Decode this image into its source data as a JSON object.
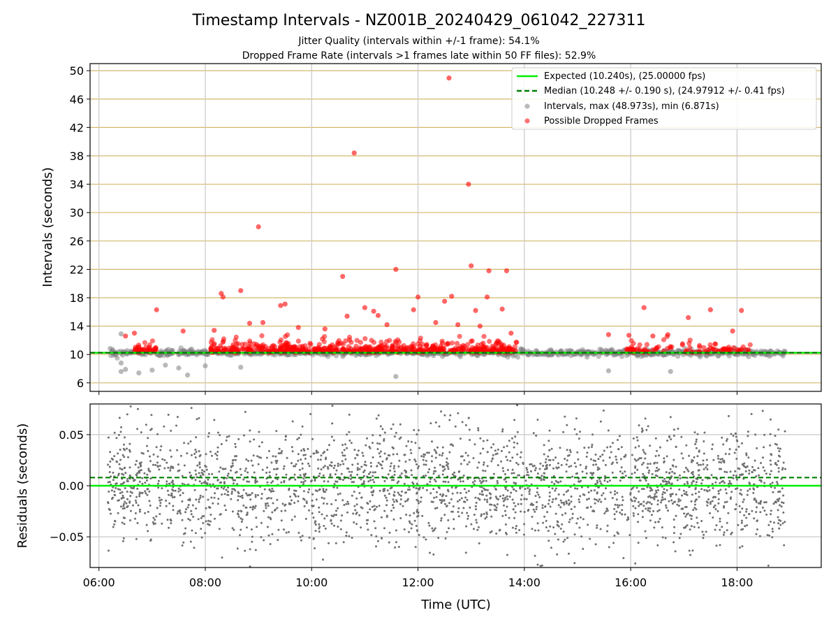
{
  "figure": {
    "title": "Timestamp Intervals - NZ001B_20240429_061042_227311",
    "subtitle_1": "Jitter Quality (intervals within +/-1 frame): 54.1%",
    "subtitle_2": "Dropped Frame Rate (intervals >1 frames late within 50 FF files): 52.9%"
  },
  "colors": {
    "expected": "#00ee00",
    "median": "#007f00",
    "intervals": "#808080",
    "dropped": "#ff0000",
    "hgrid": "#d4b86a",
    "vgrid": "#c8c8c8"
  },
  "chart_data": [
    {
      "type": "scatter",
      "panel": "top",
      "ylabel": "Intervals (seconds)",
      "xlim": [
        "05:50",
        "19:35"
      ],
      "ylim": [
        4.8,
        51
      ],
      "yticks": [
        "6",
        "10",
        "14",
        "18",
        "22",
        "26",
        "30",
        "34",
        "38",
        "42",
        "46",
        "50"
      ],
      "xticks": [
        "06:00",
        "08:00",
        "10:00",
        "12:00",
        "14:00",
        "16:00",
        "18:00"
      ],
      "grid": "on",
      "legend_position": "top-right",
      "lines": [
        {
          "name": "Expected (10.240s), (25.00000 fps)",
          "style": "solid",
          "y": 10.24
        },
        {
          "name": "Median (10.248 +/- 0.190 s), (24.97912 +/- 0.41 fps)",
          "style": "dashed",
          "y": 10.248
        }
      ],
      "series": [
        {
          "name": "Intervals, max (48.973s), min (6.871s)",
          "x_range": [
            "06:12",
            "18:55"
          ],
          "y_band": [
            9.8,
            10.8
          ],
          "outliers": [
            {
              "x": "06:25",
              "y": 12.9
            },
            {
              "x": "06:25",
              "y": 7.6
            },
            {
              "x": "06:25",
              "y": 8.8
            },
            {
              "x": "06:45",
              "y": 7.4
            },
            {
              "x": "07:00",
              "y": 7.8
            },
            {
              "x": "07:30",
              "y": 8.1
            },
            {
              "x": "07:40",
              "y": 7.1
            },
            {
              "x": "08:00",
              "y": 8.4
            },
            {
              "x": "08:40",
              "y": 8.2
            },
            {
              "x": "11:35",
              "y": 6.9
            },
            {
              "x": "15:35",
              "y": 7.7
            },
            {
              "x": "16:45",
              "y": 7.6
            },
            {
              "x": "06:30",
              "y": 7.9
            },
            {
              "x": "07:15",
              "y": 8.5
            }
          ]
        },
        {
          "name": "Possible Dropped Frames",
          "points": [
            {
              "x": "12:35",
              "y": 48.97
            },
            {
              "x": "10:48",
              "y": 38.4
            },
            {
              "x": "12:57",
              "y": 34.0
            },
            {
              "x": "09:00",
              "y": 28.0
            },
            {
              "x": "13:00",
              "y": 22.5
            },
            {
              "x": "11:35",
              "y": 22.0
            },
            {
              "x": "13:20",
              "y": 21.8
            },
            {
              "x": "13:40",
              "y": 21.8
            },
            {
              "x": "10:35",
              "y": 21.0
            },
            {
              "x": "08:18",
              "y": 18.6
            },
            {
              "x": "08:20",
              "y": 18.1
            },
            {
              "x": "08:40",
              "y": 19.0
            },
            {
              "x": "12:00",
              "y": 18.1
            },
            {
              "x": "12:38",
              "y": 18.2
            },
            {
              "x": "13:18",
              "y": 18.1
            },
            {
              "x": "09:25",
              "y": 16.9
            },
            {
              "x": "09:30",
              "y": 17.1
            },
            {
              "x": "07:05",
              "y": 16.3
            },
            {
              "x": "11:00",
              "y": 16.6
            },
            {
              "x": "11:10",
              "y": 16.1
            },
            {
              "x": "11:55",
              "y": 16.3
            },
            {
              "x": "12:30",
              "y": 17.5
            },
            {
              "x": "13:05",
              "y": 16.2
            },
            {
              "x": "13:35",
              "y": 16.4
            },
            {
              "x": "10:40",
              "y": 15.4
            },
            {
              "x": "11:15",
              "y": 15.5
            },
            {
              "x": "16:15",
              "y": 16.6
            },
            {
              "x": "17:05",
              "y": 15.2
            },
            {
              "x": "17:30",
              "y": 16.3
            },
            {
              "x": "18:05",
              "y": 16.2
            },
            {
              "x": "07:35",
              "y": 13.3
            },
            {
              "x": "06:40",
              "y": 13.0
            },
            {
              "x": "06:30",
              "y": 12.6
            },
            {
              "x": "15:35",
              "y": 12.8
            },
            {
              "x": "15:58",
              "y": 12.7
            },
            {
              "x": "16:25",
              "y": 12.6
            },
            {
              "x": "16:42",
              "y": 12.8
            },
            {
              "x": "17:55",
              "y": 13.3
            },
            {
              "x": "09:05",
              "y": 14.5
            },
            {
              "x": "08:50",
              "y": 14.4
            },
            {
              "x": "09:45",
              "y": 13.8
            },
            {
              "x": "10:15",
              "y": 13.6
            },
            {
              "x": "11:25",
              "y": 14.2
            },
            {
              "x": "12:20",
              "y": 14.5
            },
            {
              "x": "12:45",
              "y": 14.2
            },
            {
              "x": "13:10",
              "y": 14.0
            },
            {
              "x": "13:45",
              "y": 13.0
            },
            {
              "x": "08:10",
              "y": 13.4
            }
          ],
          "dense_band": {
            "x_range": [
              "06:40",
              "18:15"
            ],
            "y_range": [
              10.2,
              12.5
            ]
          }
        }
      ]
    },
    {
      "type": "scatter",
      "panel": "bottom",
      "xlabel": "Time (UTC)",
      "ylabel": "Residuals (seconds)",
      "xlim": [
        "05:50",
        "19:35"
      ],
      "ylim": [
        -0.08,
        0.08
      ],
      "yticks": [
        "−0.05",
        "0.00",
        "0.05"
      ],
      "xticks": [
        "06:00",
        "08:00",
        "10:00",
        "12:00",
        "14:00",
        "16:00",
        "18:00"
      ],
      "grid": "on",
      "lines": [
        {
          "name": "Expected",
          "style": "solid",
          "y": 0.0
        },
        {
          "name": "Median",
          "style": "dashed",
          "y": 0.008
        }
      ],
      "series": [
        {
          "name": "Residuals",
          "x_range": [
            "06:10",
            "18:55"
          ],
          "y_spread": [
            -0.08,
            0.08
          ],
          "description": "dense scatter of small gray points concentrated within +/-0.03"
        }
      ]
    }
  ]
}
